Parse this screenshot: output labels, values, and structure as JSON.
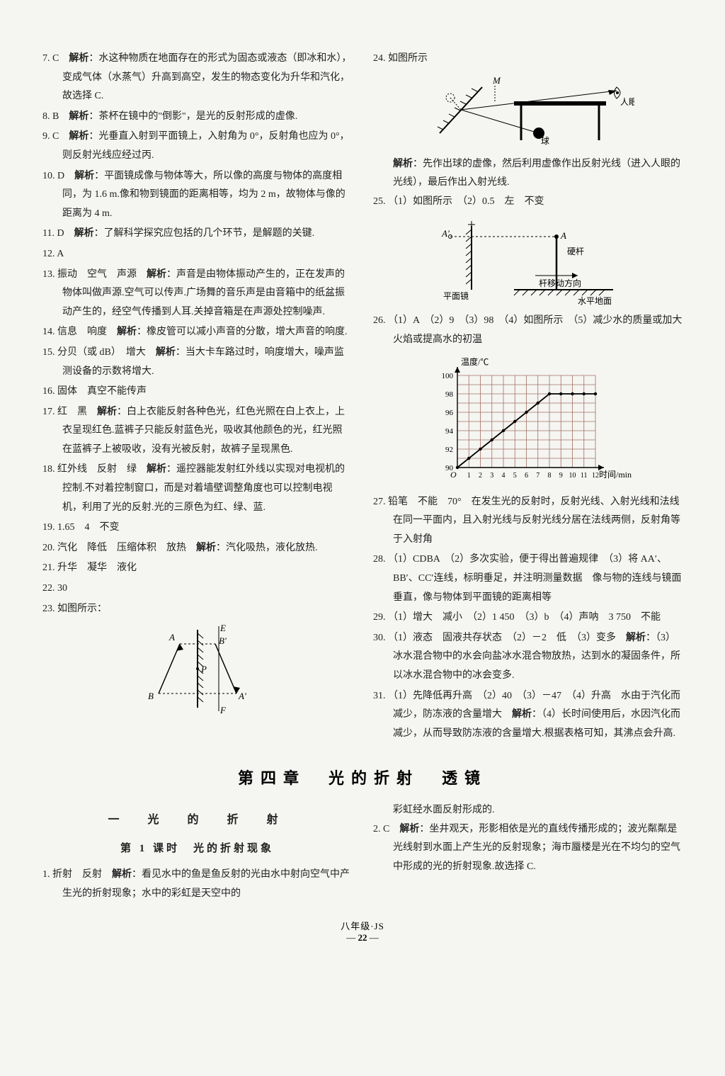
{
  "left": {
    "q7": {
      "num": "7. C　",
      "label_jiexi": "解析",
      "text": "：水这种物质在地面存在的形式为固态或液态（即冰和水），变成气体（水蒸气）升高到高空，发生的物态变化为升华和汽化，故选择 C."
    },
    "q8": {
      "num": "8. B　",
      "label_jiexi": "解析",
      "text": "：茶杯在镜中的\"倒影\"，是光的反射形成的虚像."
    },
    "q9": {
      "num": "9. C　",
      "label_jiexi": "解析",
      "text": "：光垂直入射到平面镜上，入射角为 0°，反射角也应为 0°，则反射光线应经过丙."
    },
    "q10": {
      "num": "10. D　",
      "label_jiexi": "解析",
      "text": "：平面镜成像与物体等大，所以像的高度与物体的高度相同，为 1.6 m.像和物到镜面的距离相等，均为 2 m，故物体与像的距离为 4 m."
    },
    "q11": {
      "num": "11. D　",
      "label_jiexi": "解析",
      "text": "：了解科学探究应包括的几个环节，是解题的关键."
    },
    "q12": {
      "num": "12. A"
    },
    "q13": {
      "num": "13. ",
      "ans": "振动　空气　声源　",
      "label_jiexi": "解析",
      "text": "：声音是由物体振动产生的，正在发声的物体叫做声源.空气可以传声.广场舞的音乐声是由音箱中的纸盆振动产生的，经空气传播到人耳.关掉音箱是在声源处控制噪声."
    },
    "q14": {
      "num": "14. ",
      "ans": "信息　响度　",
      "label_jiexi": "解析",
      "text": "：橡皮管可以减小声音的分散，增大声音的响度."
    },
    "q15": {
      "num": "15. ",
      "ans": "分贝（或 dB）　增大　",
      "label_jiexi": "解析",
      "text": "：当大卡车路过时，响度增大，噪声监测设备的示数将增大."
    },
    "q16": {
      "num": "16. ",
      "ans": "固体　真空不能传声"
    },
    "q17": {
      "num": "17. ",
      "ans": "红　黑　",
      "label_jiexi": "解析",
      "text": "：白上衣能反射各种色光，红色光照在白上衣上，上衣呈现红色.蓝裤子只能反射蓝色光，吸收其他颜色的光，红光照在蓝裤子上被吸收，没有光被反射，故裤子呈现黑色."
    },
    "q18": {
      "num": "18. ",
      "ans": "红外线　反射　绿　",
      "label_jiexi": "解析",
      "text": "：遥控器能发射红外线以实现对电视机的控制.不对着控制窗口，而是对着墙壁调整角度也可以控制电视机，利用了光的反射.光的三原色为红、绿、蓝."
    },
    "q19": {
      "num": "19. ",
      "ans": "1.65　4　不变"
    },
    "q20": {
      "num": "20. ",
      "ans": "汽化　降低　压缩体积　放热　",
      "label_jiexi": "解析",
      "text": "：汽化吸热，液化放热."
    },
    "q21": {
      "num": "21. ",
      "ans": "升华　凝华　液化"
    },
    "q22": {
      "num": "22. ",
      "ans": "30"
    },
    "q23": {
      "num": "23. 如图所示："
    },
    "diagram23": {
      "A": "A",
      "B": "B",
      "Ap": "A'",
      "Bp": "B'",
      "E": "E",
      "F": "F",
      "P": "P"
    }
  },
  "right": {
    "q24": {
      "num": "24. ",
      "ans": "如图所示"
    },
    "diagram24": {
      "M": "M",
      "eye": "人眼",
      "ball": "球"
    },
    "q24_jiexi": {
      "label_jiexi": "解析",
      "text": "：先作出球的虚像，然后利用虚像作出反射光线（进入人眼的光线），最后作出入射光线."
    },
    "q25": {
      "num": "25. ",
      "ans": "（1）如图所示　（2）0.5　左　不变"
    },
    "diagram25": {
      "Ap": "A'",
      "A": "A",
      "rod": "硬杆",
      "dir": "杆移动方向",
      "mirror": "平面镜",
      "ground": "水平地面"
    },
    "q26": {
      "num": "26. ",
      "ans": "（1）A　（2）9　（3）98　（4）如图所示　（5）减少水的质量或加大火焰或提高水的初温"
    },
    "chart26": {
      "ylabel": "温度/℃",
      "xlabel": "时间/min",
      "y_ticks": [
        "90",
        "92",
        "94",
        "96",
        "98",
        "100"
      ],
      "x_ticks": [
        "1",
        "2",
        "3",
        "4",
        "5",
        "6",
        "7",
        "8",
        "9",
        "10",
        "11",
        "12"
      ],
      "origin": "O",
      "points": [
        [
          0,
          90
        ],
        [
          1,
          91
        ],
        [
          2,
          92
        ],
        [
          3,
          93
        ],
        [
          4,
          94
        ],
        [
          5,
          95
        ],
        [
          6,
          96
        ],
        [
          7,
          97
        ],
        [
          8,
          98
        ],
        [
          9,
          98
        ],
        [
          10,
          98
        ],
        [
          11,
          98
        ],
        [
          12,
          98
        ]
      ],
      "grid_color": "#a07060",
      "axis_color": "#000",
      "line_color": "#000"
    },
    "q27": {
      "num": "27. ",
      "ans": "铅笔　不能　70°　在发生光的反射时，反射光线、入射光线和法线在同一平面内，且入射光线与反射光线分居在法线两侧，反射角等于入射角"
    },
    "q28": {
      "num": "28. ",
      "ans": "（1）CDBA　（2）多次实验，便于得出普遍规律　（3）将 AA′、BB′、CC′连线，标明垂足，并注明测量数据　像与物的连线与镜面垂直，像与物体到平面镜的距离相等"
    },
    "q29": {
      "num": "29. ",
      "ans": "（1）增大　减小　（2）1 450　（3）b　（4）声呐　3 750　不能"
    },
    "q30": {
      "num": "30. ",
      "ans": "（1）液态　固液共存状态　（2）－2　低　（3）变多　",
      "label_jiexi": "解析",
      "text": "：（3）冰水混合物中的水会向盐冰水混合物放热，达到水的凝固条件，所以冰水混合物中的冰会变多."
    },
    "q31": {
      "num": "31. ",
      "ans": "（1）先降低再升高　（2）40　（3）－47　（4）升高　水由于汽化而减少，防冻液的含量增大　",
      "label_jiexi": "解析",
      "text": "：（4）长时间使用后，水因汽化而减少，从而导致防冻液的含量增大.根据表格可知，其沸点会升高."
    }
  },
  "chapter": {
    "title": "第四章　光的折射　透镜",
    "section": "一　光　的　折　射",
    "lesson": "第 1 课时　光的折射现象"
  },
  "bottom_left": {
    "q1": {
      "num": "1. ",
      "ans": "折射　反射　",
      "label_jiexi": "解析",
      "text": "：看见水中的鱼是鱼反射的光由水中射向空气中产生光的折射现象；水中的彩虹是天空中的"
    }
  },
  "bottom_right": {
    "cont": "彩虹经水面反射形成的.",
    "q2": {
      "num": "2. C　",
      "label_jiexi": "解析",
      "text": "：坐井观天，形影相依是光的直线传播形成的；波光粼粼是光线射到水面上产生光的反射现象；海市蜃楼是光在不均匀的空气中形成的光的折射现象.故选择 C."
    }
  },
  "footer": {
    "grade": "八年级·JS",
    "page": "22"
  }
}
